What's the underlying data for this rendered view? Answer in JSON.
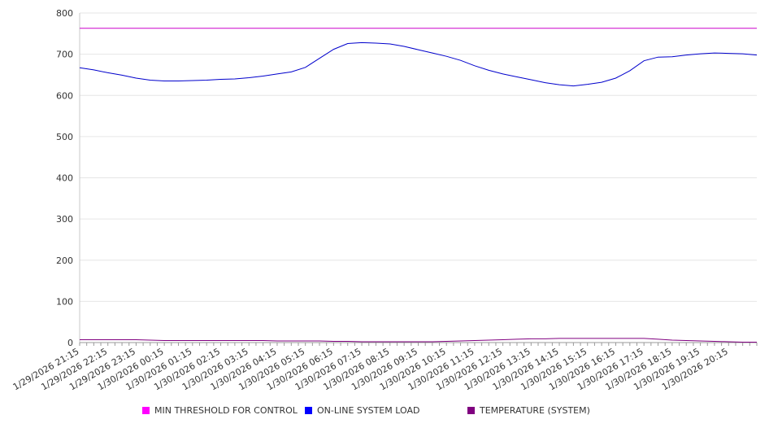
{
  "chart_data": {
    "type": "line",
    "title": "",
    "xlabel": "",
    "ylabel": "",
    "ylim": [
      0,
      800
    ],
    "y_ticks": [
      0,
      100,
      200,
      300,
      400,
      500,
      600,
      700,
      800
    ],
    "x_tick_labels": [
      "1/29/2026 21:15",
      "1/29/2026 22:15",
      "1/29/2026 23:15",
      "1/30/2026 00:15",
      "1/30/2026 01:15",
      "1/30/2026 02:15",
      "1/30/2026 03:15",
      "1/30/2026 04:15",
      "1/30/2026 05:15",
      "1/30/2026 06:15",
      "1/30/2026 07:15",
      "1/30/2026 08:15",
      "1/30/2026 09:15",
      "1/30/2026 10:15",
      "1/30/2026 11:15",
      "1/30/2026 12:15",
      "1/30/2026 13:15",
      "1/30/2026 14:15",
      "1/30/2026 15:15",
      "1/30/2026 16:15",
      "1/30/2026 17:15",
      "1/30/2026 18:15",
      "1/30/2026 19:15",
      "1/30/2026 20:15"
    ],
    "x_hours": [
      0,
      0.5,
      1,
      1.5,
      2,
      2.5,
      3,
      3.5,
      4,
      4.5,
      5,
      5.5,
      6,
      6.5,
      7,
      7.5,
      8,
      8.5,
      9,
      9.5,
      10,
      10.5,
      11,
      11.5,
      12,
      12.5,
      13,
      13.5,
      14,
      14.5,
      15,
      15.5,
      16,
      16.5,
      17,
      17.5,
      18,
      18.5,
      19,
      19.5,
      20,
      20.5,
      21,
      21.5,
      22,
      22.5,
      23,
      23.5,
      24
    ],
    "grid": true,
    "legend_position": "bottom",
    "series": [
      {
        "name": "MIN THRESHOLD FOR CONTROL",
        "color": "#cc00cc",
        "legend_color": "#ff00ff",
        "values": [
          763,
          763,
          763,
          763,
          763,
          763,
          763,
          763,
          763,
          763,
          763,
          763,
          763,
          763,
          763,
          763,
          763,
          763,
          763,
          763,
          763,
          763,
          763,
          763,
          763,
          763,
          763,
          763,
          763,
          763,
          763,
          763,
          763,
          763,
          763,
          763,
          763,
          763,
          763,
          763,
          763,
          763,
          763,
          763,
          763,
          763,
          763,
          763,
          763
        ]
      },
      {
        "name": "ON-LINE SYSTEM LOAD",
        "color": "#0000cc",
        "legend_color": "#0000ff",
        "values": [
          667,
          662,
          655,
          649,
          642,
          637,
          635,
          635,
          636,
          637,
          639,
          640,
          643,
          647,
          652,
          657,
          668,
          690,
          712,
          726,
          728,
          727,
          725,
          719,
          711,
          703,
          695,
          685,
          672,
          661,
          652,
          645,
          638,
          631,
          626,
          623,
          627,
          632,
          642,
          660,
          684,
          693,
          694,
          698,
          701,
          703,
          702,
          701,
          698
        ]
      },
      {
        "name": "TEMPERATURE (SYSTEM)",
        "color": "#800080",
        "legend_color": "#800080",
        "values": [
          7,
          7,
          7,
          7,
          7,
          6,
          5,
          5,
          5,
          5,
          5,
          5,
          5,
          5,
          4,
          4,
          4,
          4,
          3,
          3,
          2,
          2,
          2,
          2,
          2,
          2,
          3,
          4,
          5,
          6,
          7,
          8,
          9,
          9,
          10,
          10,
          10,
          10,
          10,
          10,
          10,
          8,
          6,
          5,
          4,
          3,
          2,
          1,
          1
        ]
      }
    ]
  }
}
